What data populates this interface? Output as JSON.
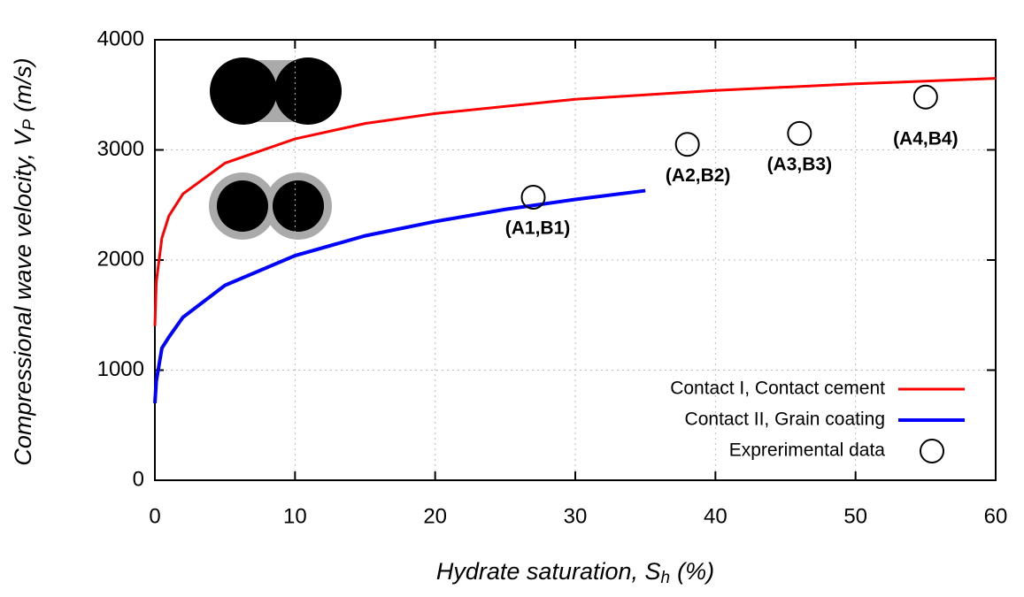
{
  "chart_data": {
    "type": "line",
    "xlabel": "Hydrate saturation, S",
    "xlabel_sub": "h",
    "xlabel_unit": "(%)",
    "ylabel": "Compressional wave velocity, V",
    "ylabel_sub": "P",
    "ylabel_unit": "(m/s)",
    "xlim": [
      0,
      60
    ],
    "xticks": [
      0,
      10,
      20,
      30,
      40,
      50,
      60
    ],
    "ylim": [
      0,
      4000
    ],
    "yticks": [
      0,
      1000,
      2000,
      3000,
      4000
    ],
    "grid": true,
    "legend": "lower right",
    "series": [
      {
        "name": "Contact I, Contact cement",
        "color": "#ff0000",
        "mark": "line",
        "x": [
          0,
          0.1,
          0.5,
          1,
          2,
          5,
          10,
          15,
          20,
          30,
          40,
          50,
          60
        ],
        "values": [
          1400,
          1800,
          2200,
          2400,
          2600,
          2880,
          3100,
          3240,
          3330,
          3460,
          3540,
          3600,
          3650
        ]
      },
      {
        "name": "Contact II, Grain coating",
        "color": "#0000ff",
        "mark": "line",
        "x": [
          0,
          0.1,
          0.5,
          1,
          2,
          5,
          10,
          15,
          20,
          25,
          30,
          35
        ],
        "values": [
          700,
          900,
          1200,
          1300,
          1480,
          1770,
          2040,
          2220,
          2350,
          2460,
          2550,
          2630
        ]
      },
      {
        "name": "Exprerimental data",
        "color": "#000000",
        "mark": "circle",
        "x": [
          27,
          38,
          46,
          55
        ],
        "values": [
          2570,
          3050,
          3150,
          3480
        ],
        "point_labels": [
          "(A1,B1)",
          "(A2,B2)",
          "(A3,B3)",
          "(A4,B4)"
        ]
      }
    ]
  }
}
